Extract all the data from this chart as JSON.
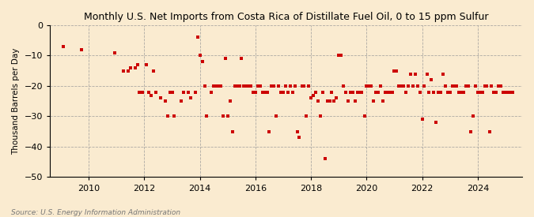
{
  "title": "Monthly U.S. Net Imports from Costa Rica of Distillate Fuel Oil, 0 to 15 ppm Sulfur",
  "ylabel": "Thousand Barrels per Day",
  "source": "Source: U.S. Energy Information Administration",
  "ylim": [
    -50,
    0
  ],
  "yticks": [
    0,
    -10,
    -20,
    -30,
    -40,
    -50
  ],
  "xticks": [
    2010,
    2012,
    2014,
    2016,
    2018,
    2020,
    2022,
    2024
  ],
  "xlim": [
    2008.6,
    2025.6
  ],
  "marker_color": "#cc0000",
  "marker_size": 5,
  "background_color": "#faebd0",
  "grid_color": "#999999",
  "scatter_x": [
    2009.08,
    2009.75,
    2010.92,
    2011.25,
    2011.42,
    2011.5,
    2011.67,
    2011.75,
    2011.83,
    2011.92,
    2012.08,
    2012.17,
    2012.25,
    2012.33,
    2012.42,
    2012.58,
    2012.75,
    2012.83,
    2012.92,
    2013.0,
    2013.08,
    2013.33,
    2013.42,
    2013.58,
    2013.67,
    2013.83,
    2013.92,
    2014.0,
    2014.08,
    2014.17,
    2014.25,
    2014.42,
    2014.5,
    2014.58,
    2014.67,
    2014.75,
    2014.83,
    2014.92,
    2015.0,
    2015.08,
    2015.17,
    2015.25,
    2015.33,
    2015.42,
    2015.5,
    2015.58,
    2015.67,
    2015.75,
    2015.83,
    2015.92,
    2016.0,
    2016.08,
    2016.17,
    2016.25,
    2016.33,
    2016.42,
    2016.5,
    2016.58,
    2016.67,
    2016.75,
    2016.83,
    2016.92,
    2017.0,
    2017.08,
    2017.17,
    2017.25,
    2017.33,
    2017.42,
    2017.5,
    2017.58,
    2017.67,
    2017.75,
    2017.83,
    2017.92,
    2018.0,
    2018.08,
    2018.17,
    2018.25,
    2018.33,
    2018.42,
    2018.5,
    2018.58,
    2018.67,
    2018.75,
    2018.83,
    2018.92,
    2019.0,
    2019.08,
    2019.17,
    2019.25,
    2019.33,
    2019.42,
    2019.5,
    2019.58,
    2019.67,
    2019.75,
    2019.83,
    2019.92,
    2020.0,
    2020.08,
    2020.17,
    2020.25,
    2020.33,
    2020.42,
    2020.5,
    2020.58,
    2020.67,
    2020.75,
    2020.83,
    2020.92,
    2021.0,
    2021.08,
    2021.17,
    2021.25,
    2021.33,
    2021.42,
    2021.5,
    2021.58,
    2021.67,
    2021.75,
    2021.83,
    2021.92,
    2022.0,
    2022.08,
    2022.17,
    2022.25,
    2022.33,
    2022.42,
    2022.5,
    2022.58,
    2022.67,
    2022.75,
    2022.83,
    2022.92,
    2023.0,
    2023.08,
    2023.17,
    2023.25,
    2023.33,
    2023.42,
    2023.5,
    2023.58,
    2023.67,
    2023.75,
    2023.83,
    2023.92,
    2024.0,
    2024.08,
    2024.17,
    2024.25,
    2024.33,
    2024.42,
    2024.5,
    2024.58,
    2024.67,
    2024.75,
    2024.83,
    2024.92,
    2025.0,
    2025.08,
    2025.17,
    2025.25
  ],
  "scatter_y": [
    -7,
    -8,
    -9,
    -15,
    -15,
    -14,
    -14,
    -13,
    -22,
    -22,
    -13,
    -22,
    -23,
    -15,
    -22,
    -24,
    -25,
    -30,
    -22,
    -22,
    -30,
    -25,
    -22,
    -22,
    -24,
    -22,
    -4,
    -10,
    -12,
    -20,
    -30,
    -22,
    -20,
    -20,
    -20,
    -20,
    -30,
    -11,
    -30,
    -25,
    -35,
    -20,
    -20,
    -20,
    -11,
    -20,
    -20,
    -20,
    -20,
    -22,
    -22,
    -20,
    -20,
    -22,
    -22,
    -22,
    -35,
    -20,
    -20,
    -30,
    -20,
    -22,
    -22,
    -20,
    -22,
    -20,
    -22,
    -20,
    -35,
    -37,
    -20,
    -20,
    -30,
    -20,
    -24,
    -23,
    -22,
    -25,
    -30,
    -22,
    -44,
    -25,
    -25,
    -22,
    -25,
    -24,
    -10,
    -10,
    -20,
    -22,
    -25,
    -22,
    -22,
    -25,
    -22,
    -22,
    -22,
    -30,
    -20,
    -20,
    -20,
    -25,
    -22,
    -22,
    -20,
    -25,
    -22,
    -22,
    -22,
    -22,
    -15,
    -15,
    -20,
    -20,
    -20,
    -22,
    -20,
    -16,
    -20,
    -16,
    -20,
    -22,
    -31,
    -20,
    -16,
    -22,
    -18,
    -22,
    -32,
    -22,
    -22,
    -16,
    -20,
    -22,
    -22,
    -20,
    -20,
    -20,
    -22,
    -22,
    -22,
    -20,
    -20,
    -35,
    -30,
    -20,
    -22,
    -22,
    -22,
    -20,
    -20,
    -35,
    -20,
    -22,
    -22,
    -20,
    -20,
    -22,
    -22,
    -22,
    -22,
    -22
  ]
}
